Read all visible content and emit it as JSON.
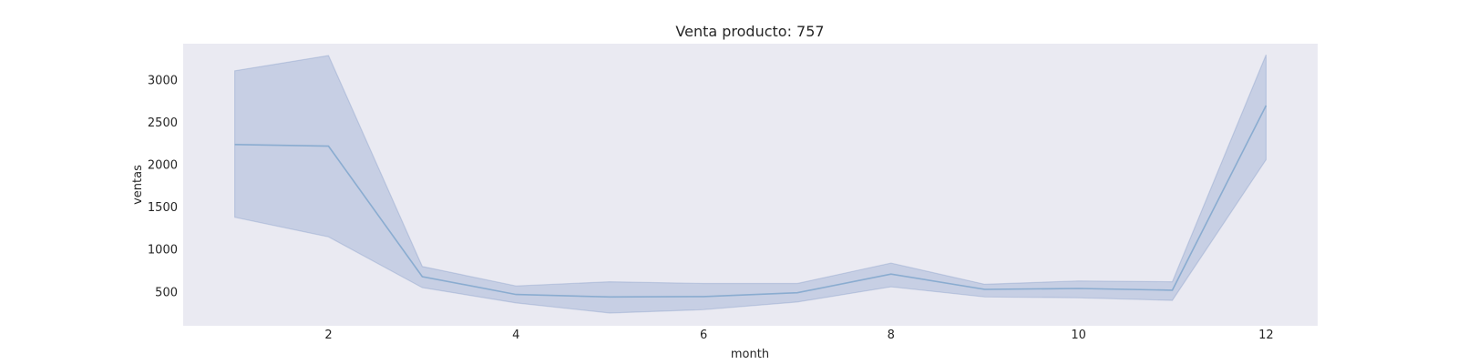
{
  "chart_data": {
    "type": "line",
    "title": "Venta producto: 757",
    "xlabel": "month",
    "ylabel": "ventas",
    "x": [
      1,
      2,
      3,
      4,
      5,
      6,
      7,
      8,
      9,
      10,
      11,
      12
    ],
    "series": [
      {
        "values": [
          2240,
          2220,
          680,
          470,
          440,
          445,
          490,
          710,
          530,
          540,
          520,
          2700
        ],
        "ci_low": [
          1380,
          1150,
          550,
          370,
          250,
          290,
          380,
          560,
          440,
          430,
          400,
          2060
        ],
        "ci_high": [
          3110,
          3290,
          800,
          570,
          620,
          600,
          600,
          840,
          590,
          630,
          620,
          3300
        ]
      }
    ],
    "xticks": [
      2,
      4,
      6,
      8,
      10,
      12
    ],
    "yticks": [
      500,
      1000,
      1500,
      2000,
      2500,
      3000
    ],
    "xlim": [
      0.45,
      12.55
    ],
    "ylim": [
      100,
      3430
    ],
    "grid": false,
    "colors": {
      "line": "#7fa6cc",
      "band": "#4c72b0",
      "plot_bg": "#eaeaf2"
    }
  }
}
